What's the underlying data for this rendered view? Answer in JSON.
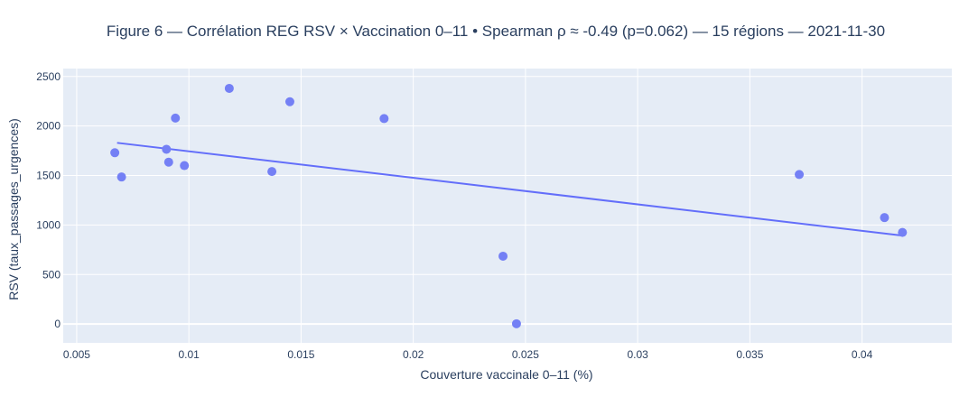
{
  "chart_data": {
    "type": "scatter",
    "title": "Figure 6 — Corrélation REG RSV × Vaccination 0–11 • Spearman ρ ≈ -0.49 (p=0.062) — 15 régions — 2021-11-30",
    "xlabel": "Couverture vaccinale 0–11 (%)",
    "ylabel": "RSV (taux_passages_urgences)",
    "xlim": [
      0.0044,
      0.044
    ],
    "ylim": [
      -190,
      2580
    ],
    "x_ticks": [
      {
        "value": 0.005,
        "label": "0.005"
      },
      {
        "value": 0.01,
        "label": "0.01"
      },
      {
        "value": 0.015,
        "label": "0.015"
      },
      {
        "value": 0.02,
        "label": "0.02"
      },
      {
        "value": 0.025,
        "label": "0.025"
      },
      {
        "value": 0.03,
        "label": "0.03"
      },
      {
        "value": 0.035,
        "label": "0.035"
      },
      {
        "value": 0.04,
        "label": "0.04"
      }
    ],
    "y_ticks": [
      {
        "value": 0,
        "label": "0"
      },
      {
        "value": 500,
        "label": "500"
      },
      {
        "value": 1000,
        "label": "1000"
      },
      {
        "value": 1500,
        "label": "1500"
      },
      {
        "value": 2000,
        "label": "2000"
      },
      {
        "value": 2500,
        "label": "2500"
      }
    ],
    "grid": true,
    "colors": {
      "plot_bg": "#e5ecf6",
      "grid": "#ffffff",
      "marker": "#7480f5",
      "trend": "#636efa",
      "text": "#2a3f5f"
    },
    "points": [
      {
        "x": 0.0067,
        "y": 1730
      },
      {
        "x": 0.007,
        "y": 1485
      },
      {
        "x": 0.009,
        "y": 1765
      },
      {
        "x": 0.0091,
        "y": 1635
      },
      {
        "x": 0.0094,
        "y": 2080
      },
      {
        "x": 0.0098,
        "y": 1600
      },
      {
        "x": 0.0118,
        "y": 2380
      },
      {
        "x": 0.0137,
        "y": 1540
      },
      {
        "x": 0.0145,
        "y": 2245
      },
      {
        "x": 0.0187,
        "y": 2075
      },
      {
        "x": 0.024,
        "y": 685
      },
      {
        "x": 0.0246,
        "y": 3
      },
      {
        "x": 0.0372,
        "y": 1510
      },
      {
        "x": 0.041,
        "y": 1075
      },
      {
        "x": 0.0418,
        "y": 925
      }
    ],
    "trendline": [
      {
        "x": 0.0068,
        "y": 1830
      },
      {
        "x": 0.0418,
        "y": 893
      }
    ]
  }
}
